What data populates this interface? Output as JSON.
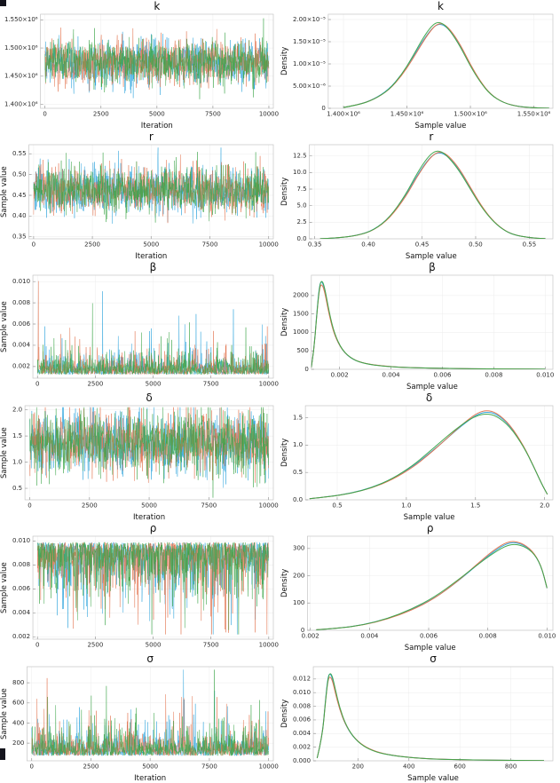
{
  "figure": {
    "background": "#ffffff",
    "grid_color": "#ececec",
    "frame_color": "#c6c6c6",
    "tick_color": "#9a9a9a",
    "text_color": "#2b2b2b",
    "chain_colors": [
      "#2aa2dc",
      "#e2714b",
      "#3ba548"
    ],
    "chains": 3
  },
  "chart_data": [
    {
      "type": "line",
      "subtype": "trace",
      "title": "k",
      "xlabel": "Iteration",
      "ylabel": "",
      "xlim": [
        -200,
        10200
      ],
      "ylim": [
        1393000,
        1560000
      ],
      "xticks": [
        {
          "v": 0,
          "l": "0"
        },
        {
          "v": 2500,
          "l": "2500"
        },
        {
          "v": 5000,
          "l": "5000"
        },
        {
          "v": 7500,
          "l": "7500"
        },
        {
          "v": 10000,
          "l": "10000"
        }
      ],
      "yticks": [
        {
          "v": 1400000,
          "l": "1.400×10⁶"
        },
        {
          "v": 1450000,
          "l": "1.450×10⁶"
        },
        {
          "v": 1500000,
          "l": "1.500×10⁶"
        },
        {
          "v": 1550000,
          "l": "1.550×10⁶"
        }
      ],
      "trace": {
        "dist": "normal",
        "mean": 1474000,
        "sd": 20000,
        "min": 1398000,
        "max": 1558000
      }
    },
    {
      "type": "line",
      "subtype": "density",
      "title": "k",
      "xlabel": "Sample value",
      "ylabel": "Density",
      "xlim": [
        1388000,
        1565000
      ],
      "ylim": [
        0,
        2.12e-05
      ],
      "xticks": [
        {
          "v": 1400000,
          "l": "1.400×10⁶"
        },
        {
          "v": 1450000,
          "l": "1.450×10⁶"
        },
        {
          "v": 1500000,
          "l": "1.500×10⁶"
        },
        {
          "v": 1550000,
          "l": "1.550×10⁶"
        }
      ],
      "yticks": [
        {
          "v": 0,
          "l": "0"
        },
        {
          "v": 5e-06,
          "l": "5.00×10⁻⁶"
        },
        {
          "v": 1e-05,
          "l": "1.00×10⁻⁵"
        },
        {
          "v": 1.5e-05,
          "l": "1.50×10⁻⁵"
        },
        {
          "v": 2e-05,
          "l": "2.00×10⁻⁵"
        }
      ],
      "points": [
        [
          1400000,
          2e-07
        ],
        [
          1412000,
          8e-07
        ],
        [
          1424000,
          2e-06
        ],
        [
          1436000,
          4.2e-06
        ],
        [
          1446000,
          7.6e-06
        ],
        [
          1454000,
          1.12e-05
        ],
        [
          1462000,
          1.52e-05
        ],
        [
          1468000,
          1.78e-05
        ],
        [
          1473000,
          1.93e-05
        ],
        [
          1478000,
          1.94e-05
        ],
        [
          1484000,
          1.78e-05
        ],
        [
          1492000,
          1.42e-05
        ],
        [
          1500000,
          9.6e-06
        ],
        [
          1508000,
          5.8e-06
        ],
        [
          1516000,
          3e-06
        ],
        [
          1526000,
          1.2e-06
        ],
        [
          1538000,
          3.5e-07
        ],
        [
          1552000,
          8e-08
        ],
        [
          1562000,
          3e-08
        ]
      ]
    },
    {
      "type": "line",
      "subtype": "trace",
      "title": "r",
      "xlabel": "Iteration",
      "ylabel": "Sample value",
      "xlim": [
        -200,
        10200
      ],
      "ylim": [
        0.345,
        0.572
      ],
      "xticks": [
        {
          "v": 0,
          "l": "0"
        },
        {
          "v": 2500,
          "l": "2500"
        },
        {
          "v": 5000,
          "l": "5000"
        },
        {
          "v": 7500,
          "l": "7500"
        },
        {
          "v": 10000,
          "l": "10000"
        }
      ],
      "yticks": [
        {
          "v": 0.35,
          "l": "0.35"
        },
        {
          "v": 0.4,
          "l": "0.40"
        },
        {
          "v": 0.45,
          "l": "0.45"
        },
        {
          "v": 0.5,
          "l": "0.50"
        },
        {
          "v": 0.55,
          "l": "0.55"
        }
      ],
      "trace": {
        "dist": "normal",
        "mean": 0.463,
        "sd": 0.028,
        "min": 0.356,
        "max": 0.565
      }
    },
    {
      "type": "line",
      "subtype": "density",
      "title": "r",
      "xlabel": "Sample value",
      "ylabel": "Density",
      "xlim": [
        0.345,
        0.572
      ],
      "ylim": [
        0,
        14.2
      ],
      "xticks": [
        {
          "v": 0.35,
          "l": "0.35"
        },
        {
          "v": 0.4,
          "l": "0.40"
        },
        {
          "v": 0.45,
          "l": "0.45"
        },
        {
          "v": 0.5,
          "l": "0.50"
        },
        {
          "v": 0.55,
          "l": "0.55"
        }
      ],
      "yticks": [
        {
          "v": 0,
          "l": "0.0"
        },
        {
          "v": 2.5,
          "l": "2.5"
        },
        {
          "v": 5,
          "l": "5.0"
        },
        {
          "v": 7.5,
          "l": "7.5"
        },
        {
          "v": 10,
          "l": "10.0"
        },
        {
          "v": 12.5,
          "l": "12.5"
        }
      ],
      "points": [
        [
          0.355,
          0.02
        ],
        [
          0.37,
          0.1
        ],
        [
          0.39,
          0.5
        ],
        [
          0.405,
          1.3
        ],
        [
          0.42,
          3.2
        ],
        [
          0.435,
          6.6
        ],
        [
          0.445,
          9.6
        ],
        [
          0.455,
          12.1
        ],
        [
          0.462,
          13.2
        ],
        [
          0.468,
          13.3
        ],
        [
          0.475,
          12.5
        ],
        [
          0.485,
          10.4
        ],
        [
          0.495,
          7.6
        ],
        [
          0.505,
          4.9
        ],
        [
          0.515,
          2.8
        ],
        [
          0.525,
          1.4
        ],
        [
          0.535,
          0.6
        ],
        [
          0.55,
          0.15
        ],
        [
          0.565,
          0.03
        ]
      ]
    },
    {
      "type": "line",
      "subtype": "trace",
      "title": "β",
      "xlabel": "",
      "ylabel": "Sample value",
      "xlim": [
        -200,
        10200
      ],
      "ylim": [
        0.0009,
        0.0106
      ],
      "xticks": [
        {
          "v": 0,
          "l": "0"
        },
        {
          "v": 2500,
          "l": "2500"
        },
        {
          "v": 5000,
          "l": "5000"
        },
        {
          "v": 7500,
          "l": "7500"
        },
        {
          "v": 10000,
          "l": "10000"
        }
      ],
      "yticks": [
        {
          "v": 0.002,
          "l": "0.002"
        },
        {
          "v": 0.004,
          "l": "0.004"
        },
        {
          "v": 0.006,
          "l": "0.006"
        },
        {
          "v": 0.008,
          "l": "0.008"
        },
        {
          "v": 0.01,
          "l": "0.010"
        }
      ],
      "trace": {
        "dist": "exp_up",
        "base": 0.00125,
        "scale": 0.0006,
        "spike_prob": 0.012,
        "spike_mult": 4.0,
        "min": 0.001,
        "max": 0.0102
      }
    },
    {
      "type": "line",
      "subtype": "density",
      "title": "β",
      "xlabel": "Sample value",
      "ylabel": "Density",
      "xlim": [
        0.0009,
        0.0103
      ],
      "ylim": [
        0,
        2550
      ],
      "xticks": [
        {
          "v": 0.002,
          "l": "0.002"
        },
        {
          "v": 0.004,
          "l": "0.004"
        },
        {
          "v": 0.006,
          "l": "0.006"
        },
        {
          "v": 0.008,
          "l": "0.008"
        },
        {
          "v": 0.01,
          "l": "0.010"
        }
      ],
      "yticks": [
        {
          "v": 0,
          "l": "0"
        },
        {
          "v": 500,
          "l": "500"
        },
        {
          "v": 1000,
          "l": "1000"
        },
        {
          "v": 1500,
          "l": "1500"
        },
        {
          "v": 2000,
          "l": "2000"
        }
      ],
      "points": [
        [
          0.0009,
          50
        ],
        [
          0.001,
          500
        ],
        [
          0.0011,
          1400
        ],
        [
          0.0012,
          2150
        ],
        [
          0.00128,
          2400
        ],
        [
          0.0014,
          2250
        ],
        [
          0.0016,
          1500
        ],
        [
          0.0018,
          950
        ],
        [
          0.0021,
          520
        ],
        [
          0.0025,
          270
        ],
        [
          0.003,
          150
        ],
        [
          0.0037,
          85
        ],
        [
          0.0045,
          52
        ],
        [
          0.0055,
          32
        ],
        [
          0.0065,
          20
        ],
        [
          0.0078,
          12
        ],
        [
          0.009,
          7
        ],
        [
          0.01,
          4
        ]
      ]
    },
    {
      "type": "line",
      "subtype": "trace",
      "title": "δ",
      "xlabel": "Iteration",
      "ylabel": "Sample value",
      "xlim": [
        -200,
        10200
      ],
      "ylim": [
        0.28,
        2.08
      ],
      "xticks": [
        {
          "v": 0,
          "l": "0"
        },
        {
          "v": 2500,
          "l": "2500"
        },
        {
          "v": 5000,
          "l": "5000"
        },
        {
          "v": 7500,
          "l": "7500"
        },
        {
          "v": 10000,
          "l": "10000"
        }
      ],
      "yticks": [
        {
          "v": 0.5,
          "l": "0.5"
        },
        {
          "v": 1.0,
          "l": "1.0"
        },
        {
          "v": 1.5,
          "l": "1.5"
        },
        {
          "v": 2.0,
          "l": "2.0"
        }
      ],
      "trace": {
        "dist": "normal",
        "mean": 1.38,
        "sd": 0.3,
        "min": 0.32,
        "max": 2.05
      }
    },
    {
      "type": "line",
      "subtype": "density",
      "title": "δ",
      "xlabel": "Sample value",
      "ylabel": "Density",
      "xlim": [
        0.27,
        2.06
      ],
      "ylim": [
        0,
        1.72
      ],
      "xticks": [
        {
          "v": 0.5,
          "l": "0.5"
        },
        {
          "v": 1.0,
          "l": "1.0"
        },
        {
          "v": 1.5,
          "l": "1.5"
        },
        {
          "v": 2.0,
          "l": "2.0"
        }
      ],
      "yticks": [
        {
          "v": 0,
          "l": "0.0"
        },
        {
          "v": 0.5,
          "l": "0.5"
        },
        {
          "v": 1.0,
          "l": "1.0"
        },
        {
          "v": 1.5,
          "l": "1.5"
        }
      ],
      "points": [
        [
          0.3,
          0.02
        ],
        [
          0.45,
          0.06
        ],
        [
          0.6,
          0.12
        ],
        [
          0.75,
          0.22
        ],
        [
          0.9,
          0.38
        ],
        [
          1.05,
          0.62
        ],
        [
          1.15,
          0.83
        ],
        [
          1.25,
          1.05
        ],
        [
          1.35,
          1.28
        ],
        [
          1.45,
          1.48
        ],
        [
          1.52,
          1.58
        ],
        [
          1.58,
          1.6
        ],
        [
          1.65,
          1.55
        ],
        [
          1.75,
          1.33
        ],
        [
          1.85,
          0.95
        ],
        [
          1.92,
          0.6
        ],
        [
          1.98,
          0.28
        ],
        [
          2.02,
          0.1
        ]
      ]
    },
    {
      "type": "line",
      "subtype": "trace",
      "title": "ρ",
      "xlabel": "",
      "ylabel": "Sample value",
      "xlim": [
        -200,
        10200
      ],
      "ylim": [
        0.0018,
        0.0104
      ],
      "xticks": [
        {
          "v": 0,
          "l": "0"
        },
        {
          "v": 2500,
          "l": "2500"
        },
        {
          "v": 5000,
          "l": "5000"
        },
        {
          "v": 7500,
          "l": "7500"
        },
        {
          "v": 10000,
          "l": "10000"
        }
      ],
      "yticks": [
        {
          "v": 0.002,
          "l": "0.002"
        },
        {
          "v": 0.004,
          "l": "0.004"
        },
        {
          "v": 0.006,
          "l": "0.006"
        },
        {
          "v": 0.008,
          "l": "0.008"
        },
        {
          "v": 0.01,
          "l": "0.010"
        }
      ],
      "trace": {
        "dist": "exp_down",
        "top": 0.0099,
        "scale": 0.0014,
        "min": 0.0022,
        "max": 0.0101
      }
    },
    {
      "type": "line",
      "subtype": "density",
      "title": "ρ",
      "xlabel": "Sample value",
      "ylabel": "Density",
      "xlim": [
        0.0019,
        0.0102
      ],
      "ylim": [
        0,
        345
      ],
      "xticks": [
        {
          "v": 0.002,
          "l": "0.002"
        },
        {
          "v": 0.004,
          "l": "0.004"
        },
        {
          "v": 0.006,
          "l": "0.006"
        },
        {
          "v": 0.008,
          "l": "0.008"
        },
        {
          "v": 0.01,
          "l": "0.010"
        }
      ],
      "yticks": [
        {
          "v": 0,
          "l": "0"
        },
        {
          "v": 100,
          "l": "100"
        },
        {
          "v": 200,
          "l": "200"
        },
        {
          "v": 300,
          "l": "300"
        }
      ],
      "points": [
        [
          0.0022,
          2
        ],
        [
          0.003,
          8
        ],
        [
          0.0038,
          20
        ],
        [
          0.0046,
          42
        ],
        [
          0.0054,
          75
        ],
        [
          0.0062,
          120
        ],
        [
          0.007,
          185
        ],
        [
          0.0076,
          240
        ],
        [
          0.0082,
          290
        ],
        [
          0.0087,
          318
        ],
        [
          0.0091,
          312
        ],
        [
          0.0095,
          285
        ],
        [
          0.0098,
          235
        ],
        [
          0.01,
          155
        ]
      ]
    },
    {
      "type": "line",
      "subtype": "trace",
      "title": "σ",
      "xlabel": "Iteration",
      "ylabel": "Sample value",
      "xlim": [
        -200,
        10200
      ],
      "ylim": [
        25,
        960
      ],
      "xticks": [
        {
          "v": 0,
          "l": "0"
        },
        {
          "v": 2500,
          "l": "2500"
        },
        {
          "v": 5000,
          "l": "5000"
        },
        {
          "v": 7500,
          "l": "7500"
        },
        {
          "v": 10000,
          "l": "10000"
        }
      ],
      "yticks": [
        {
          "v": 200,
          "l": "200"
        },
        {
          "v": 400,
          "l": "400"
        },
        {
          "v": 600,
          "l": "600"
        },
        {
          "v": 800,
          "l": "800"
        }
      ],
      "trace": {
        "dist": "exp_up",
        "base": 75,
        "scale": 85,
        "spike_prob": 0.014,
        "spike_mult": 3.5,
        "min": 40,
        "max": 930
      }
    },
    {
      "type": "line",
      "subtype": "density",
      "title": "σ",
      "xlabel": "Sample value",
      "ylabel": "Density",
      "xlim": [
        25,
        965
      ],
      "ylim": [
        0,
        0.0138
      ],
      "xticks": [
        {
          "v": 200,
          "l": "200"
        },
        {
          "v": 400,
          "l": "400"
        },
        {
          "v": 600,
          "l": "600"
        },
        {
          "v": 800,
          "l": "800"
        }
      ],
      "yticks": [
        {
          "v": 0,
          "l": "0.000"
        },
        {
          "v": 0.002,
          "l": "0.002"
        },
        {
          "v": 0.004,
          "l": "0.004"
        },
        {
          "v": 0.006,
          "l": "0.006"
        },
        {
          "v": 0.008,
          "l": "0.008"
        },
        {
          "v": 0.01,
          "l": "0.010"
        },
        {
          "v": 0.012,
          "l": "0.012"
        }
      ],
      "points": [
        [
          40,
          0.0004
        ],
        [
          60,
          0.0035
        ],
        [
          72,
          0.0085
        ],
        [
          82,
          0.012
        ],
        [
          90,
          0.0128
        ],
        [
          100,
          0.0122
        ],
        [
          112,
          0.0102
        ],
        [
          128,
          0.0078
        ],
        [
          150,
          0.0055
        ],
        [
          180,
          0.0036
        ],
        [
          220,
          0.0022
        ],
        [
          270,
          0.0013
        ],
        [
          330,
          0.0008
        ],
        [
          420,
          0.0004
        ],
        [
          520,
          0.00022
        ],
        [
          650,
          0.00012
        ],
        [
          800,
          6e-05
        ],
        [
          930,
          3e-05
        ]
      ]
    }
  ]
}
